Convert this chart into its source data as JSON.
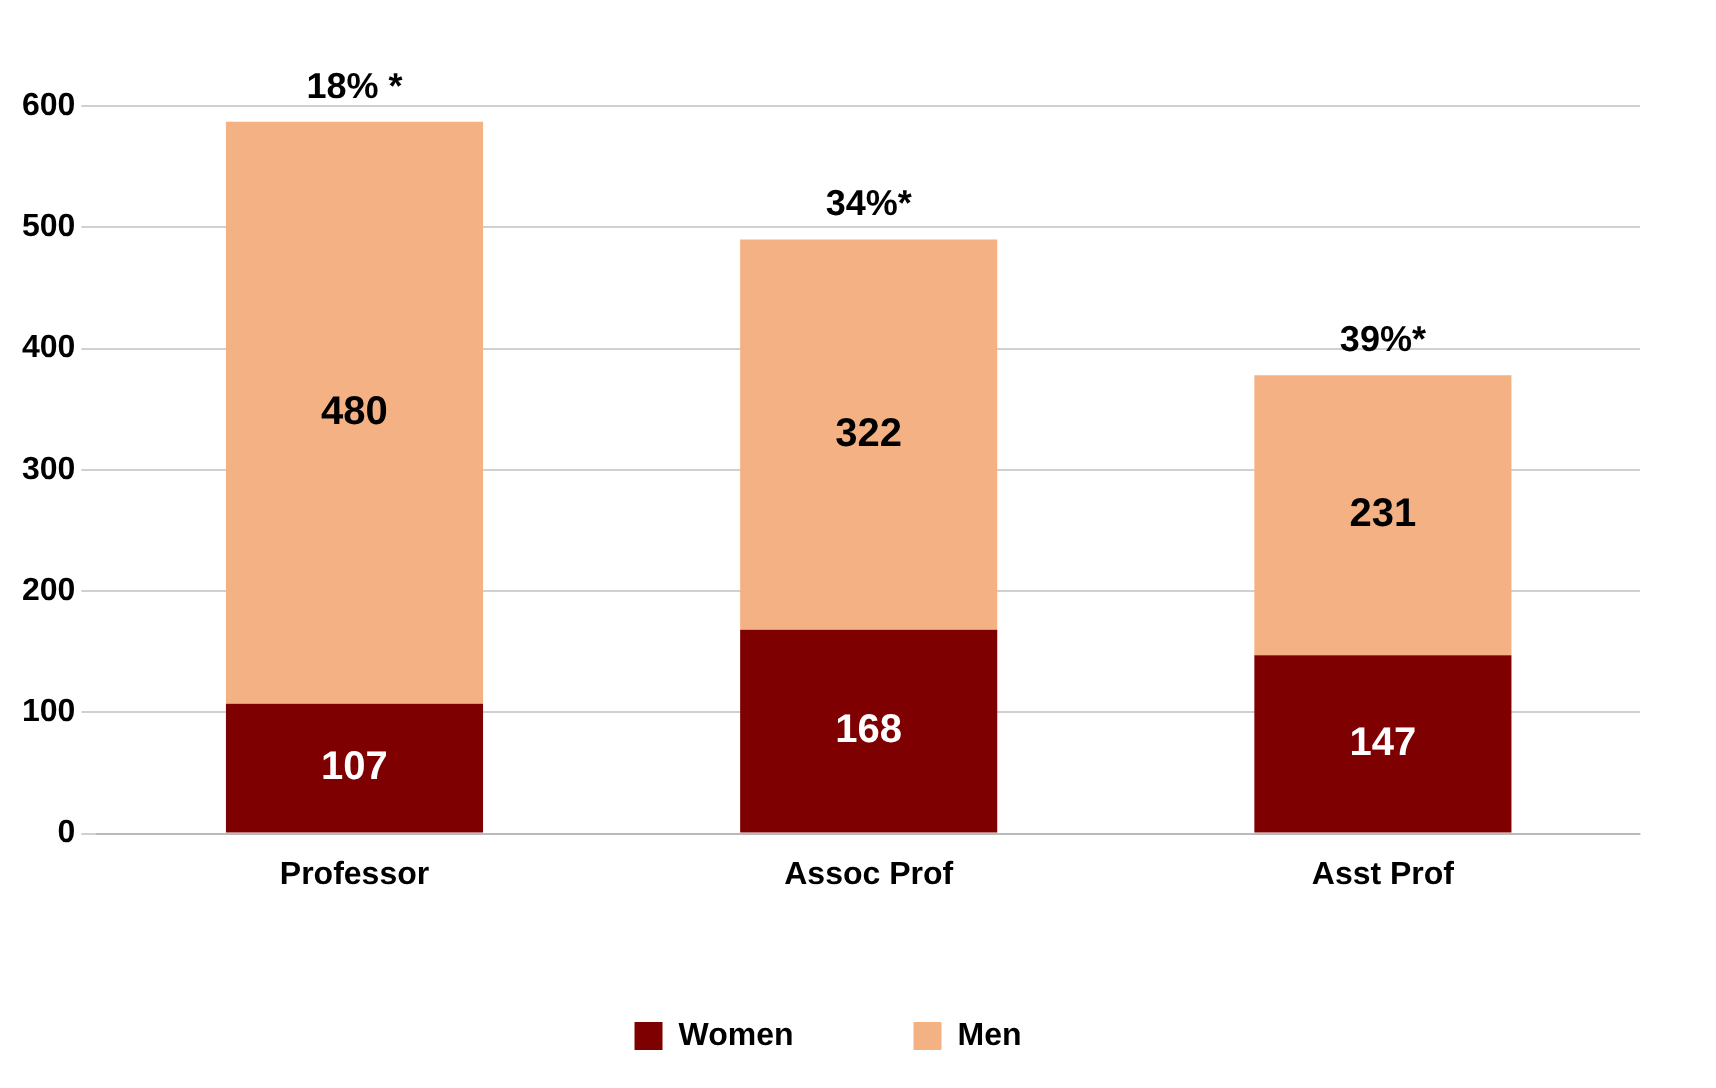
{
  "chart_data": {
    "type": "bar",
    "stacked": true,
    "categories": [
      "Professor",
      "Assoc Prof",
      "Asst Prof"
    ],
    "series": [
      {
        "name": "Women",
        "color": "#7f0000",
        "values": [
          107,
          168,
          147
        ]
      },
      {
        "name": "Men",
        "color": "#f4b183",
        "values": [
          480,
          322,
          231
        ]
      }
    ],
    "ylim": [
      0,
      600
    ],
    "yticks": [
      0,
      100,
      200,
      300,
      400,
      500,
      600
    ],
    "grid": "y",
    "legend": "bottom",
    "data_labels": true,
    "annotations": [
      {
        "text": "18% *",
        "x": "Professor",
        "y": 587
      },
      {
        "text": "34%*",
        "x": "Assoc Prof",
        "y": 490
      },
      {
        "text": "39%*",
        "x": "Asst Prof",
        "y": 378
      }
    ]
  }
}
